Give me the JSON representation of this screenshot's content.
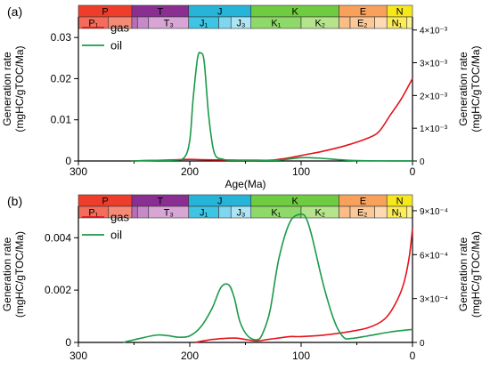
{
  "colors": {
    "gas": "#e3141b",
    "oil": "#1a9a4a",
    "axis": "#000000"
  },
  "strat": {
    "periods": [
      {
        "label": "P",
        "from": 300,
        "to": 252,
        "color": "#ef3d2b"
      },
      {
        "label": "T",
        "from": 252,
        "to": 201,
        "color": "#8a2e91"
      },
      {
        "label": "J",
        "from": 201,
        "to": 145,
        "color": "#26b4d8"
      },
      {
        "label": "K",
        "from": 145,
        "to": 66,
        "color": "#6fcb3f"
      },
      {
        "label": "E",
        "from": 66,
        "to": 23,
        "color": "#f9a15a"
      },
      {
        "label": "N",
        "from": 23,
        "to": 0,
        "color": "#f7e81d"
      }
    ],
    "epochs": [
      {
        "label": "P₁",
        "from": 300,
        "to": 273,
        "color": "#f26d5b"
      },
      {
        "label": "",
        "from": 273,
        "to": 252,
        "color": "#f48b79"
      },
      {
        "label": "",
        "from": 252,
        "to": 247,
        "color": "#b86fb6"
      },
      {
        "label": "",
        "from": 247,
        "to": 237,
        "color": "#c58ac7"
      },
      {
        "label": "T₃",
        "from": 237,
        "to": 201,
        "color": "#d7a6d5"
      },
      {
        "label": "J₁",
        "from": 201,
        "to": 174,
        "color": "#3fc5e4"
      },
      {
        "label": "",
        "from": 174,
        "to": 163,
        "color": "#7fd6ee"
      },
      {
        "label": "J₃",
        "from": 163,
        "to": 145,
        "color": "#afe4f3"
      },
      {
        "label": "K₁",
        "from": 145,
        "to": 100,
        "color": "#8fd96a"
      },
      {
        "label": "K₂",
        "from": 100,
        "to": 66,
        "color": "#b6e48d"
      },
      {
        "label": "",
        "from": 66,
        "to": 56,
        "color": "#fbbc85"
      },
      {
        "label": "E₂",
        "from": 56,
        "to": 34,
        "color": "#fbc898"
      },
      {
        "label": "",
        "from": 34,
        "to": 23,
        "color": "#fdd9b4"
      },
      {
        "label": "N₁",
        "from": 23,
        "to": 5,
        "color": "#fbec5b"
      },
      {
        "label": "",
        "from": 5,
        "to": 0,
        "color": "#fdf19a"
      }
    ]
  },
  "chart_data": [
    {
      "type": "line",
      "panel_label": "(a)",
      "xlabel": "Age(Ma)",
      "xlim": [
        300,
        0
      ],
      "xticks": [
        300,
        200,
        100,
        0
      ],
      "ylabel_left": "Generation rate\n(mgHC/gTOC/Ma)",
      "ylabel_right": "Generation rate\n(mgHC/gTOC/Ma)",
      "ylim_left": [
        0,
        0.035
      ],
      "yticks_left": [
        0,
        0.01,
        0.02,
        0.03
      ],
      "ytick_labels_left": [
        "0",
        "0.01",
        "0.02",
        "0.03"
      ],
      "ylim_right": [
        0,
        0.0044
      ],
      "yticks_right": [
        0,
        0.001,
        0.002,
        0.003,
        0.004
      ],
      "ytick_labels_right": [
        "0",
        "1×10⁻³",
        "2×10⁻³",
        "3×10⁻³",
        "4×10⁻³"
      ],
      "legend": {
        "position": "top-left",
        "entries": [
          "gas",
          "oil"
        ]
      },
      "series": [
        {
          "name": "gas",
          "axis": "right",
          "x": [
            253,
            230,
            210,
            200,
            190,
            170,
            150,
            140,
            125,
            110,
            95,
            80,
            60,
            40,
            30,
            20,
            10,
            0
          ],
          "y": [
            0,
            2e-05,
            4e-05,
            5e-05,
            4e-05,
            3e-05,
            2e-05,
            2e-05,
            3e-05,
            0.0001,
            0.0002,
            0.0003,
            0.00047,
            0.0007,
            0.0009,
            0.0014,
            0.0019,
            0.00252
          ]
        },
        {
          "name": "oil",
          "axis": "left",
          "x": [
            253,
            230,
            215,
            205,
            200,
            197,
            193,
            190,
            187,
            183,
            178,
            170,
            160,
            150,
            140,
            120,
            100,
            85,
            70,
            60,
            50,
            40,
            20,
            0
          ],
          "y": [
            0,
            0.00015,
            0.0002,
            0.0008,
            0.005,
            0.015,
            0.025,
            0.0262,
            0.024,
            0.011,
            0.002,
            0.0004,
            0.0002,
            0.0002,
            0.0002,
            0.0002,
            0.0008,
            0.0007,
            0.0004,
            0.0002,
            0.0001,
            5e-05,
            2e-05,
            1e-05
          ]
        }
      ]
    },
    {
      "type": "line",
      "panel_label": "(b)",
      "xlabel": "",
      "xlim": [
        300,
        0
      ],
      "xticks": [
        300,
        200,
        100,
        0
      ],
      "ylabel_left": "Generation rate\n(mgHC/gTOC/Ma)",
      "ylabel_right": "Generation rate\n(mgHC/gTOC/Ma)",
      "ylim_left": [
        0,
        0.0052
      ],
      "yticks_left": [
        0,
        0.002,
        0.004
      ],
      "ytick_labels_left": [
        "0",
        "0.002",
        "0.004"
      ],
      "ylim_right": [
        0,
        0.00093
      ],
      "yticks_right": [
        0,
        0.0003,
        0.0006,
        0.0009
      ],
      "ytick_labels_right": [
        "0",
        "3×10⁻⁴",
        "6×10⁻⁴",
        "9×10⁻⁴"
      ],
      "legend": {
        "position": "top-left",
        "entries": [
          "gas",
          "oil"
        ]
      },
      "series": [
        {
          "name": "gas",
          "axis": "right",
          "x": [
            195,
            180,
            160,
            150,
            140,
            130,
            120,
            110,
            100,
            80,
            60,
            40,
            25,
            15,
            8,
            3,
            0
          ],
          "y": [
            0,
            2e-05,
            3e-05,
            2e-05,
            1e-05,
            2e-05,
            3e-05,
            4e-05,
            4e-05,
            5e-05,
            7e-05,
            0.0001,
            0.00016,
            0.00027,
            0.0004,
            0.00058,
            0.00078
          ]
        },
        {
          "name": "oil",
          "axis": "left",
          "x": [
            260,
            245,
            230,
            220,
            210,
            200,
            190,
            180,
            172,
            165,
            160,
            155,
            148,
            140,
            135,
            128,
            120,
            110,
            100,
            95,
            90,
            80,
            70,
            62,
            55,
            40,
            20,
            0
          ],
          "y": [
            0,
            0.00015,
            0.00028,
            0.00026,
            0.0002,
            0.00025,
            0.0006,
            0.0013,
            0.0021,
            0.0022,
            0.0017,
            0.0008,
            0.00025,
            0.0001,
            0.0003,
            0.0012,
            0.0032,
            0.0046,
            0.0049,
            0.0047,
            0.004,
            0.0022,
            0.0008,
            0.0002,
            0.00015,
            0.00025,
            0.0004,
            0.0005
          ]
        }
      ]
    }
  ]
}
